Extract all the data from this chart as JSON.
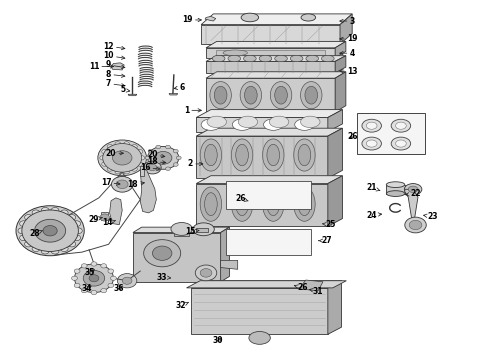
{
  "bg_color": "#ffffff",
  "lc": "#333333",
  "label_color": "#000000",
  "label_fontsize": 5.5,
  "arrow_lw": 0.5,
  "fig_w": 4.9,
  "fig_h": 3.6,
  "dpi": 100,
  "labels": [
    {
      "n": "19",
      "xt": 0.382,
      "yt": 0.948,
      "xa": 0.415,
      "ya": 0.948
    },
    {
      "n": "3",
      "xt": 0.72,
      "yt": 0.945,
      "xa": 0.69,
      "ya": 0.945
    },
    {
      "n": "19",
      "xt": 0.72,
      "yt": 0.895,
      "xa": 0.69,
      "ya": 0.895
    },
    {
      "n": "4",
      "xt": 0.72,
      "yt": 0.855,
      "xa": 0.69,
      "ya": 0.855
    },
    {
      "n": "13",
      "xt": 0.72,
      "yt": 0.805,
      "xa": 0.69,
      "ya": 0.805
    },
    {
      "n": "1",
      "xt": 0.38,
      "yt": 0.695,
      "xa": 0.415,
      "ya": 0.695
    },
    {
      "n": "12",
      "xt": 0.22,
      "yt": 0.875,
      "xa": 0.258,
      "ya": 0.867
    },
    {
      "n": "10",
      "xt": 0.22,
      "yt": 0.848,
      "xa": 0.258,
      "ya": 0.84
    },
    {
      "n": "9",
      "xt": 0.22,
      "yt": 0.822,
      "xa": 0.258,
      "ya": 0.814
    },
    {
      "n": "8",
      "xt": 0.22,
      "yt": 0.796,
      "xa": 0.258,
      "ya": 0.79
    },
    {
      "n": "7",
      "xt": 0.22,
      "yt": 0.77,
      "xa": 0.258,
      "ya": 0.763
    },
    {
      "n": "11",
      "xt": 0.19,
      "yt": 0.818,
      "xa": 0.235,
      "ya": 0.818
    },
    {
      "n": "6",
      "xt": 0.37,
      "yt": 0.76,
      "xa": 0.35,
      "ya": 0.755
    },
    {
      "n": "5",
      "xt": 0.25,
      "yt": 0.752,
      "xa": 0.268,
      "ya": 0.748
    },
    {
      "n": "2",
      "xt": 0.388,
      "yt": 0.545,
      "xa": 0.418,
      "ya": 0.545
    },
    {
      "n": "26",
      "xt": 0.72,
      "yt": 0.622,
      "xa": 0.712,
      "ya": 0.615
    },
    {
      "n": "20",
      "xt": 0.31,
      "yt": 0.57,
      "xa": 0.34,
      "ya": 0.565
    },
    {
      "n": "18",
      "xt": 0.31,
      "yt": 0.552,
      "xa": 0.342,
      "ya": 0.548
    },
    {
      "n": "16",
      "xt": 0.295,
      "yt": 0.535,
      "xa": 0.33,
      "ya": 0.53
    },
    {
      "n": "20",
      "xt": 0.225,
      "yt": 0.575,
      "xa": 0.255,
      "ya": 0.575
    },
    {
      "n": "17",
      "xt": 0.215,
      "yt": 0.493,
      "xa": 0.248,
      "ya": 0.488
    },
    {
      "n": "18",
      "xt": 0.27,
      "yt": 0.488,
      "xa": 0.298,
      "ya": 0.493
    },
    {
      "n": "21",
      "xt": 0.76,
      "yt": 0.478,
      "xa": 0.778,
      "ya": 0.47
    },
    {
      "n": "22",
      "xt": 0.85,
      "yt": 0.462,
      "xa": 0.825,
      "ya": 0.458
    },
    {
      "n": "23",
      "xt": 0.885,
      "yt": 0.398,
      "xa": 0.862,
      "ya": 0.402
    },
    {
      "n": "24",
      "xt": 0.76,
      "yt": 0.402,
      "xa": 0.785,
      "ya": 0.405
    },
    {
      "n": "26",
      "xt": 0.49,
      "yt": 0.448,
      "xa": 0.51,
      "ya": 0.44
    },
    {
      "n": "25",
      "xt": 0.675,
      "yt": 0.375,
      "xa": 0.655,
      "ya": 0.378
    },
    {
      "n": "15",
      "xt": 0.388,
      "yt": 0.355,
      "xa": 0.41,
      "ya": 0.36
    },
    {
      "n": "27",
      "xt": 0.668,
      "yt": 0.33,
      "xa": 0.648,
      "ya": 0.33
    },
    {
      "n": "14",
      "xt": 0.218,
      "yt": 0.38,
      "xa": 0.238,
      "ya": 0.388
    },
    {
      "n": "29",
      "xt": 0.19,
      "yt": 0.39,
      "xa": 0.208,
      "ya": 0.395
    },
    {
      "n": "28",
      "xt": 0.068,
      "yt": 0.35,
      "xa": 0.088,
      "ya": 0.36
    },
    {
      "n": "26",
      "xt": 0.618,
      "yt": 0.198,
      "xa": 0.6,
      "ya": 0.205
    },
    {
      "n": "31",
      "xt": 0.65,
      "yt": 0.188,
      "xa": 0.628,
      "ya": 0.195
    },
    {
      "n": "30",
      "xt": 0.445,
      "yt": 0.05,
      "xa": 0.455,
      "ya": 0.062
    },
    {
      "n": "32",
      "xt": 0.368,
      "yt": 0.148,
      "xa": 0.385,
      "ya": 0.158
    },
    {
      "n": "33",
      "xt": 0.33,
      "yt": 0.228,
      "xa": 0.352,
      "ya": 0.225
    },
    {
      "n": "34",
      "xt": 0.175,
      "yt": 0.195,
      "xa": 0.188,
      "ya": 0.205
    },
    {
      "n": "35",
      "xt": 0.182,
      "yt": 0.242,
      "xa": 0.195,
      "ya": 0.252
    },
    {
      "n": "36",
      "xt": 0.24,
      "yt": 0.195,
      "xa": 0.252,
      "ya": 0.205
    }
  ]
}
